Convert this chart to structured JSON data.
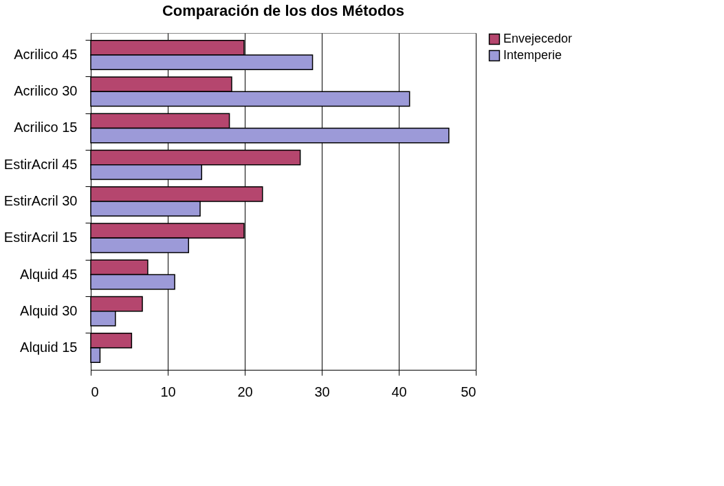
{
  "chart_data": {
    "type": "bar",
    "orientation": "horizontal",
    "title": "Comparación de los dos Métodos",
    "categories": [
      "Acrilico  45",
      "Acrilico  30",
      "Acrilico  15",
      "EstirAcril 45",
      "EstirAcril 30",
      "EstirAcril 15",
      "Alquid    45",
      "Alquid    30",
      "Alquid    15"
    ],
    "series": [
      {
        "name": "Envejecedor",
        "color": "#b5466e",
        "values": [
          19.9,
          18.3,
          18.0,
          27.2,
          22.3,
          19.9,
          7.4,
          6.7,
          5.3
        ]
      },
      {
        "name": "Intemperie",
        "color": "#9c9ad8",
        "values": [
          28.8,
          41.4,
          46.5,
          14.4,
          14.2,
          12.7,
          10.9,
          3.2,
          1.2
        ]
      }
    ],
    "xlim": [
      0,
      50
    ],
    "xticks": [
      0,
      10,
      20,
      30,
      40,
      50
    ],
    "grid": "x",
    "legend": "right"
  }
}
